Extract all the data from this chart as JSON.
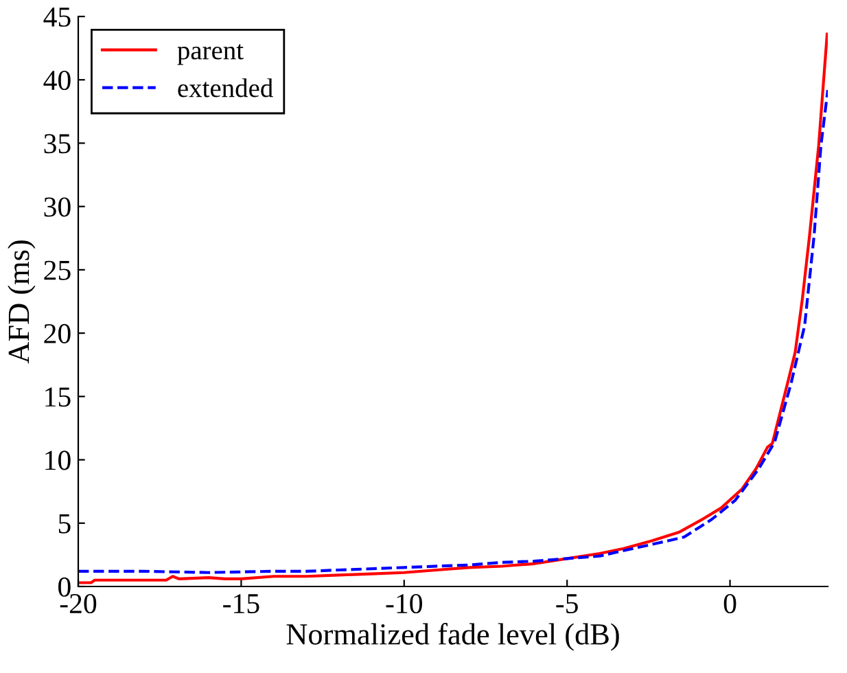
{
  "chart_data": {
    "type": "line",
    "xlabel": "Normalized fade level (dB)",
    "ylabel": "AFD (ms)",
    "xlim": [
      -20,
      3
    ],
    "ylim": [
      0,
      45
    ],
    "xticks": [
      -20,
      -15,
      -10,
      -5,
      0
    ],
    "yticks": [
      0,
      5,
      10,
      15,
      20,
      25,
      30,
      35,
      40,
      45
    ],
    "grid": false,
    "legend": "top left",
    "series": [
      {
        "name": "parent",
        "color": "#ff0000",
        "line_style": "solid",
        "x": [
          -20,
          -19.6,
          -19.5,
          -17.3,
          -17.1,
          -16.9,
          -16,
          -15.5,
          -15,
          -14,
          -13,
          -12,
          -11,
          -10,
          -9,
          -8,
          -7,
          -6,
          -5,
          -4,
          -3.26,
          -2.4,
          -1.55,
          -0.85,
          -0.27,
          0.37,
          0.8,
          1.15,
          1.3,
          1.8,
          2.0,
          2.22,
          2.44,
          2.72,
          2.98
        ],
        "values": [
          0.3,
          0.3,
          0.5,
          0.5,
          0.8,
          0.6,
          0.7,
          0.6,
          0.6,
          0.8,
          0.8,
          0.9,
          1.0,
          1.1,
          1.3,
          1.5,
          1.6,
          1.8,
          2.2,
          2.6,
          3.0,
          3.6,
          4.3,
          5.3,
          6.2,
          7.7,
          9.3,
          11.0,
          11.3,
          16.4,
          18.5,
          22.7,
          27.7,
          34.8,
          43.6
        ]
      },
      {
        "name": "extended",
        "color": "#0000ff",
        "line_style": "dashed",
        "x": [
          -20,
          -18,
          -16,
          -14,
          -13,
          -12,
          -10,
          -8,
          -7,
          -6,
          -5,
          -4,
          -3.5,
          -2.26,
          -1.41,
          -0.56,
          0.16,
          0.87,
          1.37,
          1.87,
          2.29,
          2.58,
          2.79,
          3.0
        ],
        "values": [
          1.2,
          1.2,
          1.1,
          1.2,
          1.2,
          1.3,
          1.5,
          1.7,
          1.9,
          2.0,
          2.2,
          2.4,
          2.7,
          3.4,
          3.9,
          5.3,
          6.8,
          9.25,
          11.4,
          16.0,
          20.6,
          27.7,
          34.8,
          39.2
        ]
      }
    ]
  }
}
